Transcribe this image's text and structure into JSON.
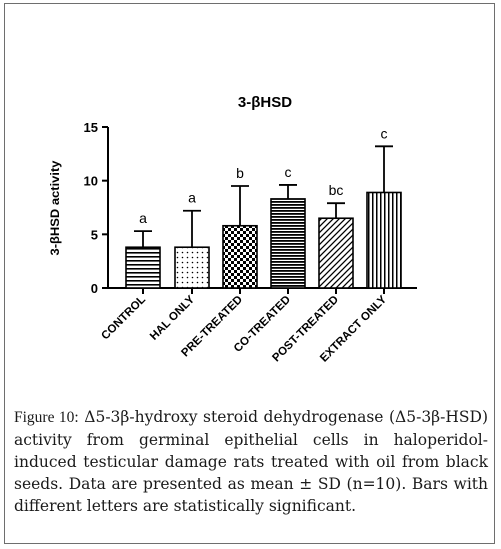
{
  "chart_data": {
    "type": "bar",
    "title": "3-βHSD",
    "ylabel": "3-βHSD activity",
    "xlabel": "",
    "categories": [
      "CONTROL",
      "HAL ONLY",
      "PRE-TREATED",
      "CO-TREATED",
      "POST-TREATED",
      "EXTRACT ONLY"
    ],
    "values": [
      3.8,
      3.8,
      5.8,
      8.3,
      6.5,
      8.9
    ],
    "errors": [
      1.5,
      3.4,
      3.7,
      1.3,
      1.4,
      4.3
    ],
    "significance_letters": [
      "a",
      "a",
      "b",
      "c",
      "bc",
      "c"
    ],
    "ylim": [
      0,
      15
    ],
    "yticks": [
      0,
      5,
      10,
      15
    ],
    "ytick_labels": [
      "0",
      "5",
      "10",
      "15"
    ],
    "grid": false,
    "legend": "none",
    "patterns": [
      "horizontal-lines",
      "dots",
      "checkerboard",
      "horizontal-lines-heavy",
      "diagonal-lines",
      "vertical-lines"
    ]
  },
  "caption": {
    "label": "Figure 10:",
    "text": "Δ5-3β-hydroxy steroid dehydrogenase (Δ5-3β-HSD) activity from germinal epithelial cells in haloperidol-induced testicular damage rats treated with oil from black seeds. Data are presented as mean ± SD (n=10). Bars with different letters are statistically significant."
  },
  "colors": {
    "ink": "#000000",
    "frame": "#6e6e6e"
  }
}
